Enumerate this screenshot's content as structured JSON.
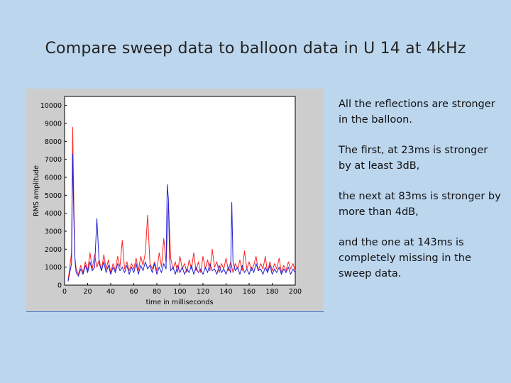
{
  "slide": {
    "title": "Compare sweep data to balloon data in U 14 at 4kHz",
    "notes": [
      "All the reflections are stronger in the balloon.",
      "The first, at 23ms is stronger by at least 3dB,",
      "the next at 83ms is stronger by more than 4dB,",
      "and the one at 143ms is completely missing in the sweep data."
    ]
  },
  "colors": {
    "balloon": "#ff2020",
    "sweep": "#2020d8",
    "plot_bg": "#ffffff",
    "figure_bg": "#cdcdcd",
    "axis": "#000000"
  },
  "chart_data": {
    "type": "line",
    "xlabel": "time in milliseconds",
    "ylabel": "RMS amplitude",
    "xlim": [
      0,
      200
    ],
    "ylim": [
      0,
      10500
    ],
    "x_ticks": [
      0,
      20,
      40,
      60,
      80,
      100,
      120,
      140,
      160,
      180,
      200
    ],
    "y_ticks": [
      0,
      1000,
      2000,
      3000,
      4000,
      5000,
      6000,
      7000,
      8000,
      9000,
      10000
    ],
    "grid": false,
    "series": [
      {
        "color": "#ff2020",
        "points": [
          [
            3,
            250
          ],
          [
            6,
            1800
          ],
          [
            7,
            8800
          ],
          [
            8,
            4500
          ],
          [
            9,
            1500
          ],
          [
            10,
            900
          ],
          [
            12,
            600
          ],
          [
            14,
            1100
          ],
          [
            16,
            700
          ],
          [
            18,
            1300
          ],
          [
            20,
            800
          ],
          [
            22,
            1800
          ],
          [
            24,
            900
          ],
          [
            26,
            1700
          ],
          [
            28,
            1000
          ],
          [
            30,
            1400
          ],
          [
            32,
            800
          ],
          [
            34,
            1700
          ],
          [
            36,
            900
          ],
          [
            38,
            1400
          ],
          [
            40,
            700
          ],
          [
            42,
            1200
          ],
          [
            44,
            800
          ],
          [
            46,
            1600
          ],
          [
            48,
            1000
          ],
          [
            50,
            2500
          ],
          [
            52,
            900
          ],
          [
            54,
            1300
          ],
          [
            56,
            800
          ],
          [
            58,
            1200
          ],
          [
            60,
            900
          ],
          [
            62,
            1500
          ],
          [
            64,
            800
          ],
          [
            66,
            1600
          ],
          [
            68,
            1100
          ],
          [
            70,
            1800
          ],
          [
            72,
            3900
          ],
          [
            74,
            1200
          ],
          [
            76,
            900
          ],
          [
            78,
            1300
          ],
          [
            80,
            800
          ],
          [
            82,
            1800
          ],
          [
            84,
            1000
          ],
          [
            86,
            2600
          ],
          [
            88,
            1200
          ],
          [
            90,
            4600
          ],
          [
            92,
            1500
          ],
          [
            94,
            900
          ],
          [
            96,
            1300
          ],
          [
            98,
            700
          ],
          [
            100,
            1600
          ],
          [
            102,
            900
          ],
          [
            104,
            1200
          ],
          [
            106,
            700
          ],
          [
            108,
            1400
          ],
          [
            110,
            900
          ],
          [
            112,
            1800
          ],
          [
            114,
            800
          ],
          [
            116,
            1300
          ],
          [
            118,
            700
          ],
          [
            120,
            1600
          ],
          [
            122,
            900
          ],
          [
            124,
            1400
          ],
          [
            126,
            800
          ],
          [
            128,
            2000
          ],
          [
            130,
            1000
          ],
          [
            132,
            1300
          ],
          [
            134,
            700
          ],
          [
            136,
            1200
          ],
          [
            138,
            900
          ],
          [
            140,
            1500
          ],
          [
            142,
            800
          ],
          [
            144,
            1300
          ],
          [
            146,
            700
          ],
          [
            148,
            1200
          ],
          [
            150,
            900
          ],
          [
            152,
            1400
          ],
          [
            154,
            800
          ],
          [
            156,
            1900
          ],
          [
            158,
            900
          ],
          [
            160,
            1300
          ],
          [
            162,
            800
          ],
          [
            164,
            1100
          ],
          [
            166,
            1600
          ],
          [
            168,
            800
          ],
          [
            170,
            1200
          ],
          [
            172,
            900
          ],
          [
            174,
            1600
          ],
          [
            176,
            700
          ],
          [
            178,
            1300
          ],
          [
            180,
            800
          ],
          [
            182,
            1200
          ],
          [
            184,
            900
          ],
          [
            186,
            1500
          ],
          [
            188,
            700
          ],
          [
            190,
            1100
          ],
          [
            192,
            800
          ],
          [
            194,
            1300
          ],
          [
            196,
            900
          ],
          [
            198,
            1200
          ],
          [
            200,
            800
          ]
        ]
      },
      {
        "color": "#2020d8",
        "points": [
          [
            3,
            200
          ],
          [
            6,
            1200
          ],
          [
            7,
            7300
          ],
          [
            8,
            3800
          ],
          [
            9,
            1400
          ],
          [
            10,
            700
          ],
          [
            12,
            500
          ],
          [
            14,
            900
          ],
          [
            16,
            600
          ],
          [
            18,
            1100
          ],
          [
            20,
            700
          ],
          [
            22,
            1300
          ],
          [
            24,
            800
          ],
          [
            26,
            1000
          ],
          [
            28,
            3700
          ],
          [
            30,
            1200
          ],
          [
            32,
            800
          ],
          [
            34,
            1300
          ],
          [
            36,
            700
          ],
          [
            38,
            1100
          ],
          [
            40,
            600
          ],
          [
            42,
            1000
          ],
          [
            44,
            700
          ],
          [
            46,
            1200
          ],
          [
            48,
            800
          ],
          [
            50,
            1000
          ],
          [
            52,
            700
          ],
          [
            54,
            1100
          ],
          [
            56,
            600
          ],
          [
            58,
            1000
          ],
          [
            60,
            700
          ],
          [
            62,
            1200
          ],
          [
            64,
            600
          ],
          [
            66,
            1100
          ],
          [
            68,
            800
          ],
          [
            70,
            1300
          ],
          [
            72,
            900
          ],
          [
            74,
            1100
          ],
          [
            76,
            700
          ],
          [
            78,
            1200
          ],
          [
            80,
            600
          ],
          [
            82,
            1000
          ],
          [
            84,
            700
          ],
          [
            86,
            1200
          ],
          [
            88,
            900
          ],
          [
            89,
            5600
          ],
          [
            90,
            4800
          ],
          [
            91,
            1500
          ],
          [
            92,
            800
          ],
          [
            94,
            1000
          ],
          [
            96,
            600
          ],
          [
            98,
            1100
          ],
          [
            100,
            700
          ],
          [
            102,
            1000
          ],
          [
            104,
            600
          ],
          [
            106,
            900
          ],
          [
            108,
            700
          ],
          [
            110,
            1100
          ],
          [
            112,
            600
          ],
          [
            114,
            1000
          ],
          [
            116,
            700
          ],
          [
            118,
            900
          ],
          [
            120,
            600
          ],
          [
            122,
            1000
          ],
          [
            124,
            700
          ],
          [
            126,
            1200
          ],
          [
            128,
            800
          ],
          [
            130,
            900
          ],
          [
            132,
            600
          ],
          [
            134,
            1100
          ],
          [
            136,
            700
          ],
          [
            138,
            900
          ],
          [
            140,
            600
          ],
          [
            142,
            1000
          ],
          [
            144,
            700
          ],
          [
            145,
            4600
          ],
          [
            146,
            1300
          ],
          [
            148,
            800
          ],
          [
            150,
            1000
          ],
          [
            152,
            600
          ],
          [
            154,
            1100
          ],
          [
            156,
            700
          ],
          [
            158,
            900
          ],
          [
            160,
            600
          ],
          [
            162,
            1000
          ],
          [
            164,
            700
          ],
          [
            166,
            1200
          ],
          [
            168,
            800
          ],
          [
            170,
            900
          ],
          [
            172,
            600
          ],
          [
            174,
            1000
          ],
          [
            176,
            700
          ],
          [
            178,
            1100
          ],
          [
            180,
            600
          ],
          [
            182,
            900
          ],
          [
            184,
            700
          ],
          [
            186,
            1000
          ],
          [
            188,
            600
          ],
          [
            190,
            900
          ],
          [
            192,
            700
          ],
          [
            194,
            1000
          ],
          [
            196,
            600
          ],
          [
            198,
            900
          ],
          [
            200,
            700
          ]
        ]
      }
    ]
  }
}
